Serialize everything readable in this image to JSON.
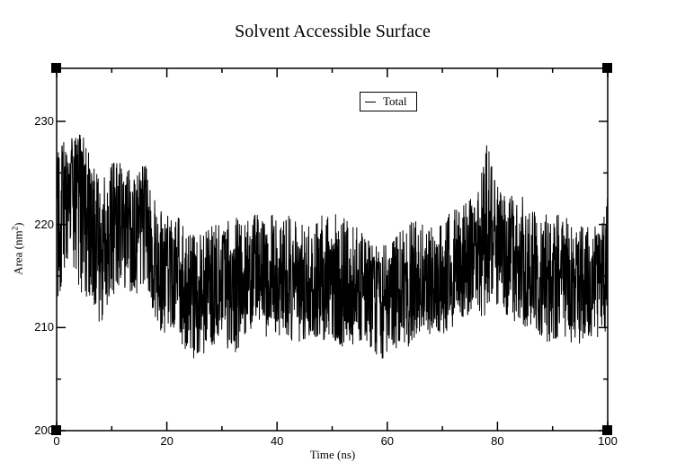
{
  "chart_data": {
    "type": "line",
    "title": "Solvent Accessible Surface",
    "xlabel": "Time (ns)",
    "ylabel": "Area (nm^2)",
    "ylabel_base": "Area (nm",
    "ylabel_sup": "2",
    "ylabel_close": ")",
    "xlim": [
      0,
      100
    ],
    "ylim": [
      200,
      235
    ],
    "x_ticks": [
      0,
      20,
      40,
      60,
      80,
      100
    ],
    "x_tick_labels": [
      "0",
      "20",
      "40",
      "60",
      "80",
      "100"
    ],
    "y_ticks": [
      200,
      210,
      220,
      230
    ],
    "y_tick_labels": [
      "200",
      "210",
      "220",
      "230"
    ],
    "grid": false,
    "legend": {
      "position": "upper-center",
      "entries": [
        "Total"
      ]
    },
    "series": [
      {
        "name": "Total",
        "color": "#000000",
        "x": [
          0,
          2,
          4,
          6,
          8,
          10,
          12,
          14,
          16,
          18,
          20,
          22,
          24,
          26,
          28,
          30,
          32,
          34,
          36,
          38,
          40,
          42,
          44,
          46,
          48,
          50,
          52,
          54,
          56,
          58,
          60,
          62,
          64,
          66,
          68,
          70,
          72,
          74,
          76,
          78,
          80,
          82,
          84,
          86,
          88,
          90,
          92,
          94,
          96,
          98,
          100
        ],
        "mean": [
          219,
          222,
          224,
          221,
          218,
          220,
          221,
          220,
          221,
          216,
          215,
          215,
          214,
          213,
          214,
          214,
          215,
          214,
          215,
          214,
          214,
          215,
          214,
          213,
          215,
          214,
          214,
          213,
          214,
          213,
          212,
          212,
          214,
          213,
          213,
          214,
          215,
          216,
          217,
          218,
          218,
          217,
          216,
          216,
          215,
          215,
          215,
          214,
          215,
          215,
          216
        ],
        "min": [
          212,
          215,
          214,
          211,
          210,
          213,
          214,
          213,
          214,
          210,
          209,
          209,
          207,
          207,
          208,
          209,
          207,
          209,
          210,
          209,
          209,
          209,
          208,
          209,
          209,
          208,
          208,
          208,
          209,
          207,
          207,
          208,
          208,
          209,
          209,
          209,
          210,
          211,
          211,
          211,
          212,
          211,
          210,
          210,
          209,
          208,
          209,
          208,
          209,
          209,
          209
        ],
        "max": [
          228,
          228,
          230,
          227,
          224,
          226,
          226,
          225,
          226,
          222,
          221,
          221,
          219,
          219,
          220,
          220,
          221,
          220,
          221,
          221,
          221,
          221,
          220,
          220,
          221,
          221,
          221,
          220,
          219,
          218,
          218,
          219,
          221,
          220,
          220,
          220,
          222,
          222,
          223,
          228,
          224,
          223,
          223,
          222,
          221,
          221,
          221,
          220,
          220,
          221,
          223
        ]
      }
    ]
  },
  "legend": {
    "label": "Total"
  }
}
